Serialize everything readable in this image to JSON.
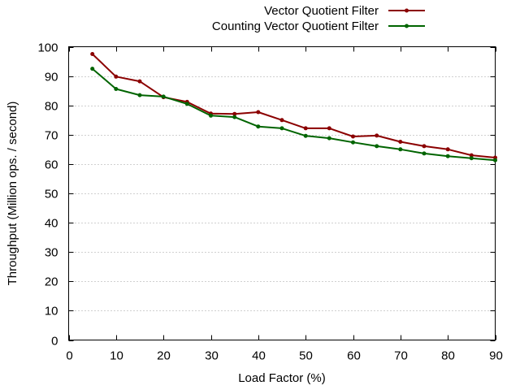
{
  "chart_data": {
    "type": "line",
    "xlabel": "Load Factor (%)",
    "ylabel": "Throughput (Million ops. / second)",
    "xlim": [
      0,
      90
    ],
    "ylim": [
      0,
      100
    ],
    "xticks": [
      0,
      10,
      20,
      30,
      40,
      50,
      60,
      70,
      80,
      90
    ],
    "yticks": [
      0,
      10,
      20,
      30,
      40,
      50,
      60,
      70,
      80,
      90,
      100
    ],
    "grid": "horizontal dotted",
    "legend_position": "top-right, outside plot",
    "x": [
      5,
      10,
      15,
      20,
      25,
      30,
      35,
      40,
      45,
      50,
      55,
      60,
      65,
      70,
      75,
      80,
      85,
      90
    ],
    "series": [
      {
        "name": "Vector Quotient Filter",
        "color": "#8b0000",
        "values": [
          97.5,
          89.8,
          88.2,
          82.8,
          81.2,
          77.2,
          77.1,
          77.7,
          75.0,
          72.2,
          72.2,
          69.4,
          69.7,
          67.6,
          66.1,
          65.0,
          63.0,
          62.2
        ]
      },
      {
        "name": "Counting Vector Quotient Filter",
        "color": "#006400",
        "values": [
          92.5,
          85.6,
          83.5,
          83.0,
          80.5,
          76.5,
          76.0,
          72.8,
          72.2,
          69.6,
          68.8,
          67.4,
          66.1,
          65.0,
          63.6,
          62.7,
          62.0,
          61.3
        ]
      }
    ]
  }
}
